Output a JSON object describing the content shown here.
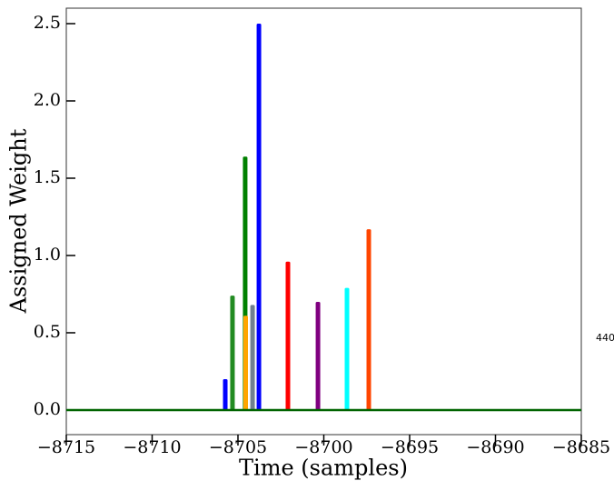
{
  "chart_data": {
    "type": "bar",
    "xlabel": "Time (samples)",
    "ylabel": "Assigned Weight",
    "annotation": "440",
    "x": [
      -8705.74,
      -8705.32,
      -8704.58,
      -8704.55,
      -8704.15,
      -8703.78,
      -8702.09,
      -8700.34,
      -8698.65,
      -8697.38
    ],
    "values": [
      0.2,
      0.74,
      1.64,
      0.61,
      0.68,
      2.5,
      0.96,
      0.7,
      0.79,
      1.17
    ],
    "colors": [
      "#0000ff",
      "#228b22",
      "#008000",
      "#ffa500",
      "#708090",
      "#0000ff",
      "#ff0000",
      "#800080",
      "#00ffff",
      "#ff4500"
    ],
    "xlim": [
      -8715,
      -8685
    ],
    "ylim": [
      -0.159,
      2.6
    ],
    "xticks": [
      {
        "value": -8715,
        "label": "−8715"
      },
      {
        "value": -8710,
        "label": "−8710"
      },
      {
        "value": -8705,
        "label": "−8705"
      },
      {
        "value": -8700,
        "label": "−8700"
      },
      {
        "value": -8695,
        "label": "−8695"
      },
      {
        "value": -8690,
        "label": "−8690"
      },
      {
        "value": -8685,
        "label": "−8685"
      }
    ],
    "yticks": [
      {
        "value": 0,
        "label": "0.0"
      },
      {
        "value": 0.5,
        "label": "0.5"
      },
      {
        "value": 1,
        "label": "1.0"
      },
      {
        "value": 1.5,
        "label": "1.5"
      },
      {
        "value": 2,
        "label": "2.0"
      },
      {
        "value": 2.5,
        "label": "2.5"
      }
    ],
    "baseline_color": "#006400"
  }
}
